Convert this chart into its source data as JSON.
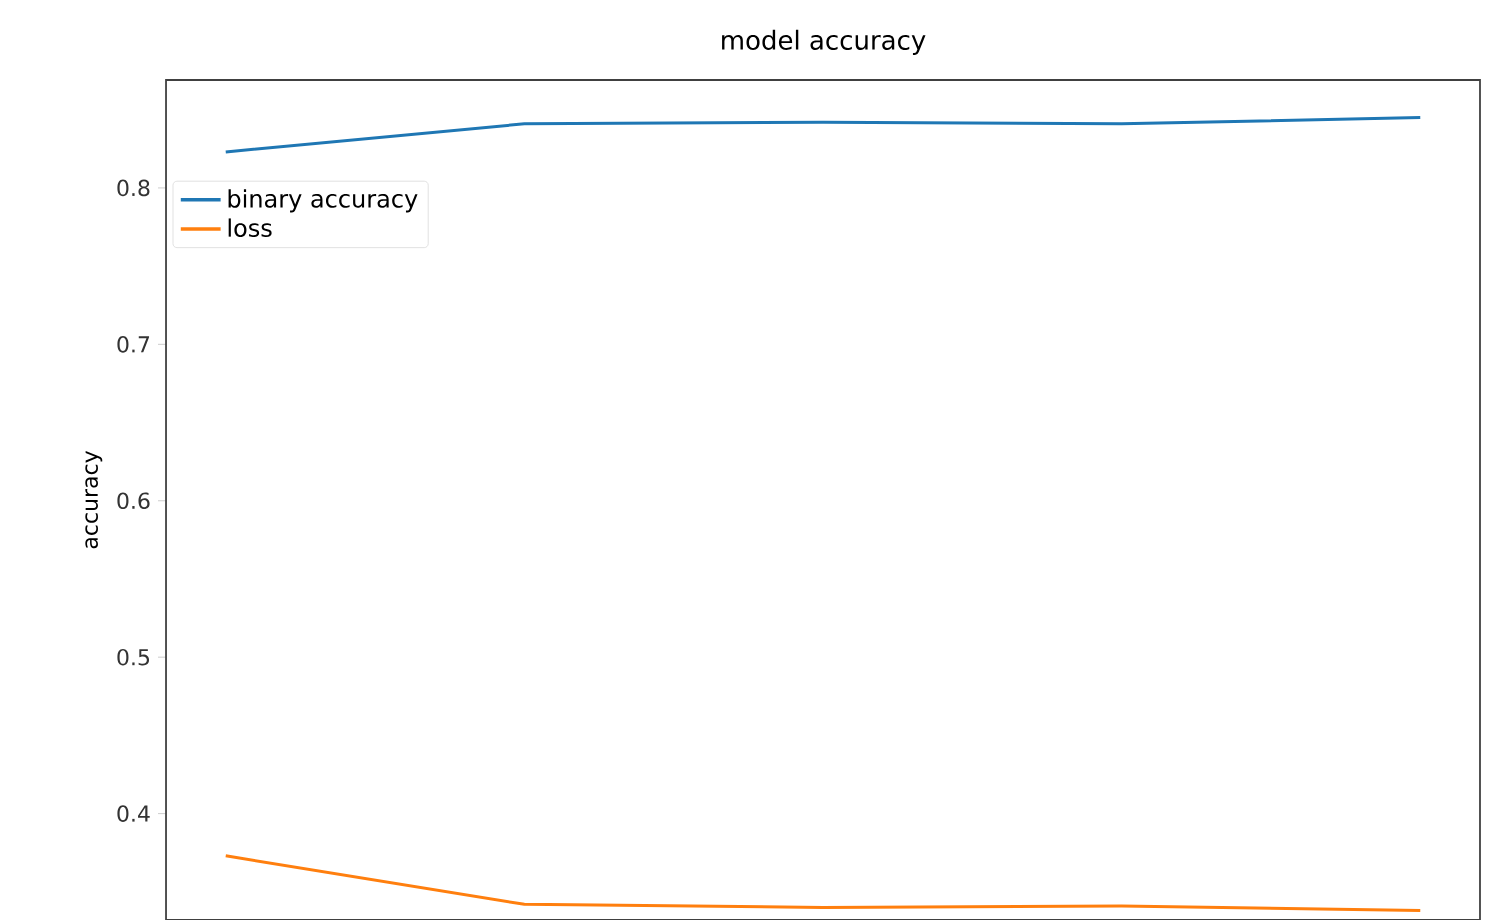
{
  "chart_data": {
    "type": "line",
    "title": "model accuracy",
    "ylabel": "accuracy",
    "categories": [
      null,
      null,
      null,
      null,
      null
    ],
    "series": [
      {
        "name": "binary accuracy",
        "color": "#1f77b4",
        "values": [
          0.823,
          0.841,
          0.842,
          0.841,
          0.845
        ]
      },
      {
        "name": "loss",
        "color": "#ff7f0e",
        "values": [
          0.373,
          0.342,
          0.34,
          0.341,
          0.338
        ]
      }
    ],
    "ylim": [
      0.332,
      0.869
    ],
    "yticks": [
      0.4,
      0.5,
      0.6,
      0.7,
      0.8
    ],
    "tick_labels": "y",
    "legend": "top left",
    "grid": false,
    "marker": "none",
    "line_style": "solid"
  }
}
